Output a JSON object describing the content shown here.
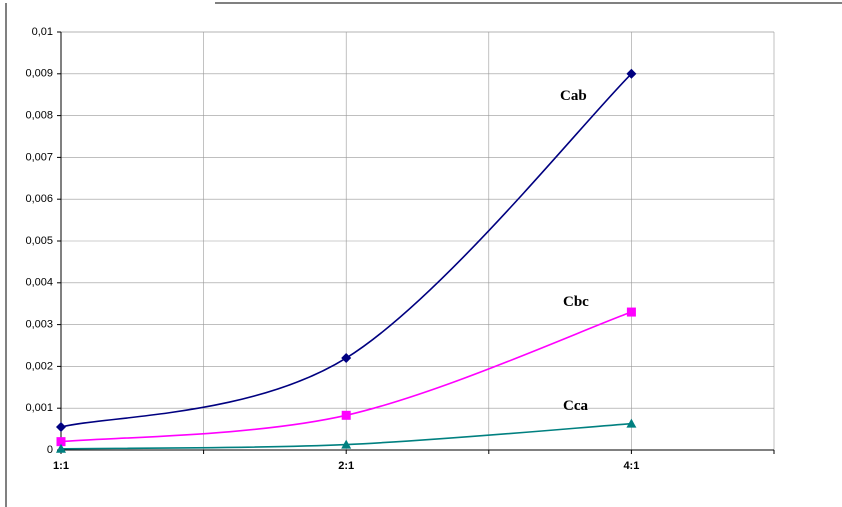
{
  "chart_data": {
    "type": "line",
    "categories": [
      "1:1",
      "2:1",
      "4:1"
    ],
    "series": [
      {
        "name": "Cab",
        "color": "#000080",
        "marker": "diamond",
        "values": [
          0.00055,
          0.0022,
          0.009
        ]
      },
      {
        "name": "Cbc",
        "color": "#ff00ff",
        "marker": "square",
        "values": [
          0.0002,
          0.00083,
          0.0033
        ]
      },
      {
        "name": "Cca",
        "color": "#008080",
        "marker": "triangle",
        "values": [
          3e-05,
          0.00013,
          0.00063
        ]
      }
    ],
    "ylim": [
      0,
      0.01
    ],
    "yticks": [
      0,
      {
        "value": 0.001,
        "label": "0,001"
      },
      {
        "value": 0.002,
        "label": "0,002"
      },
      {
        "value": 0.003,
        "label": "0,003"
      },
      {
        "value": 0.004,
        "label": "0,004"
      },
      {
        "value": 0.005,
        "label": "0,005"
      },
      {
        "value": 0.006,
        "label": "0,006"
      },
      {
        "value": 0.007,
        "label": "0,007"
      },
      {
        "value": 0.008,
        "label": "0,008"
      },
      {
        "value": 0.009,
        "label": "0,009"
      },
      {
        "value": 0.01,
        "label": "0,01"
      }
    ],
    "grid": true
  }
}
